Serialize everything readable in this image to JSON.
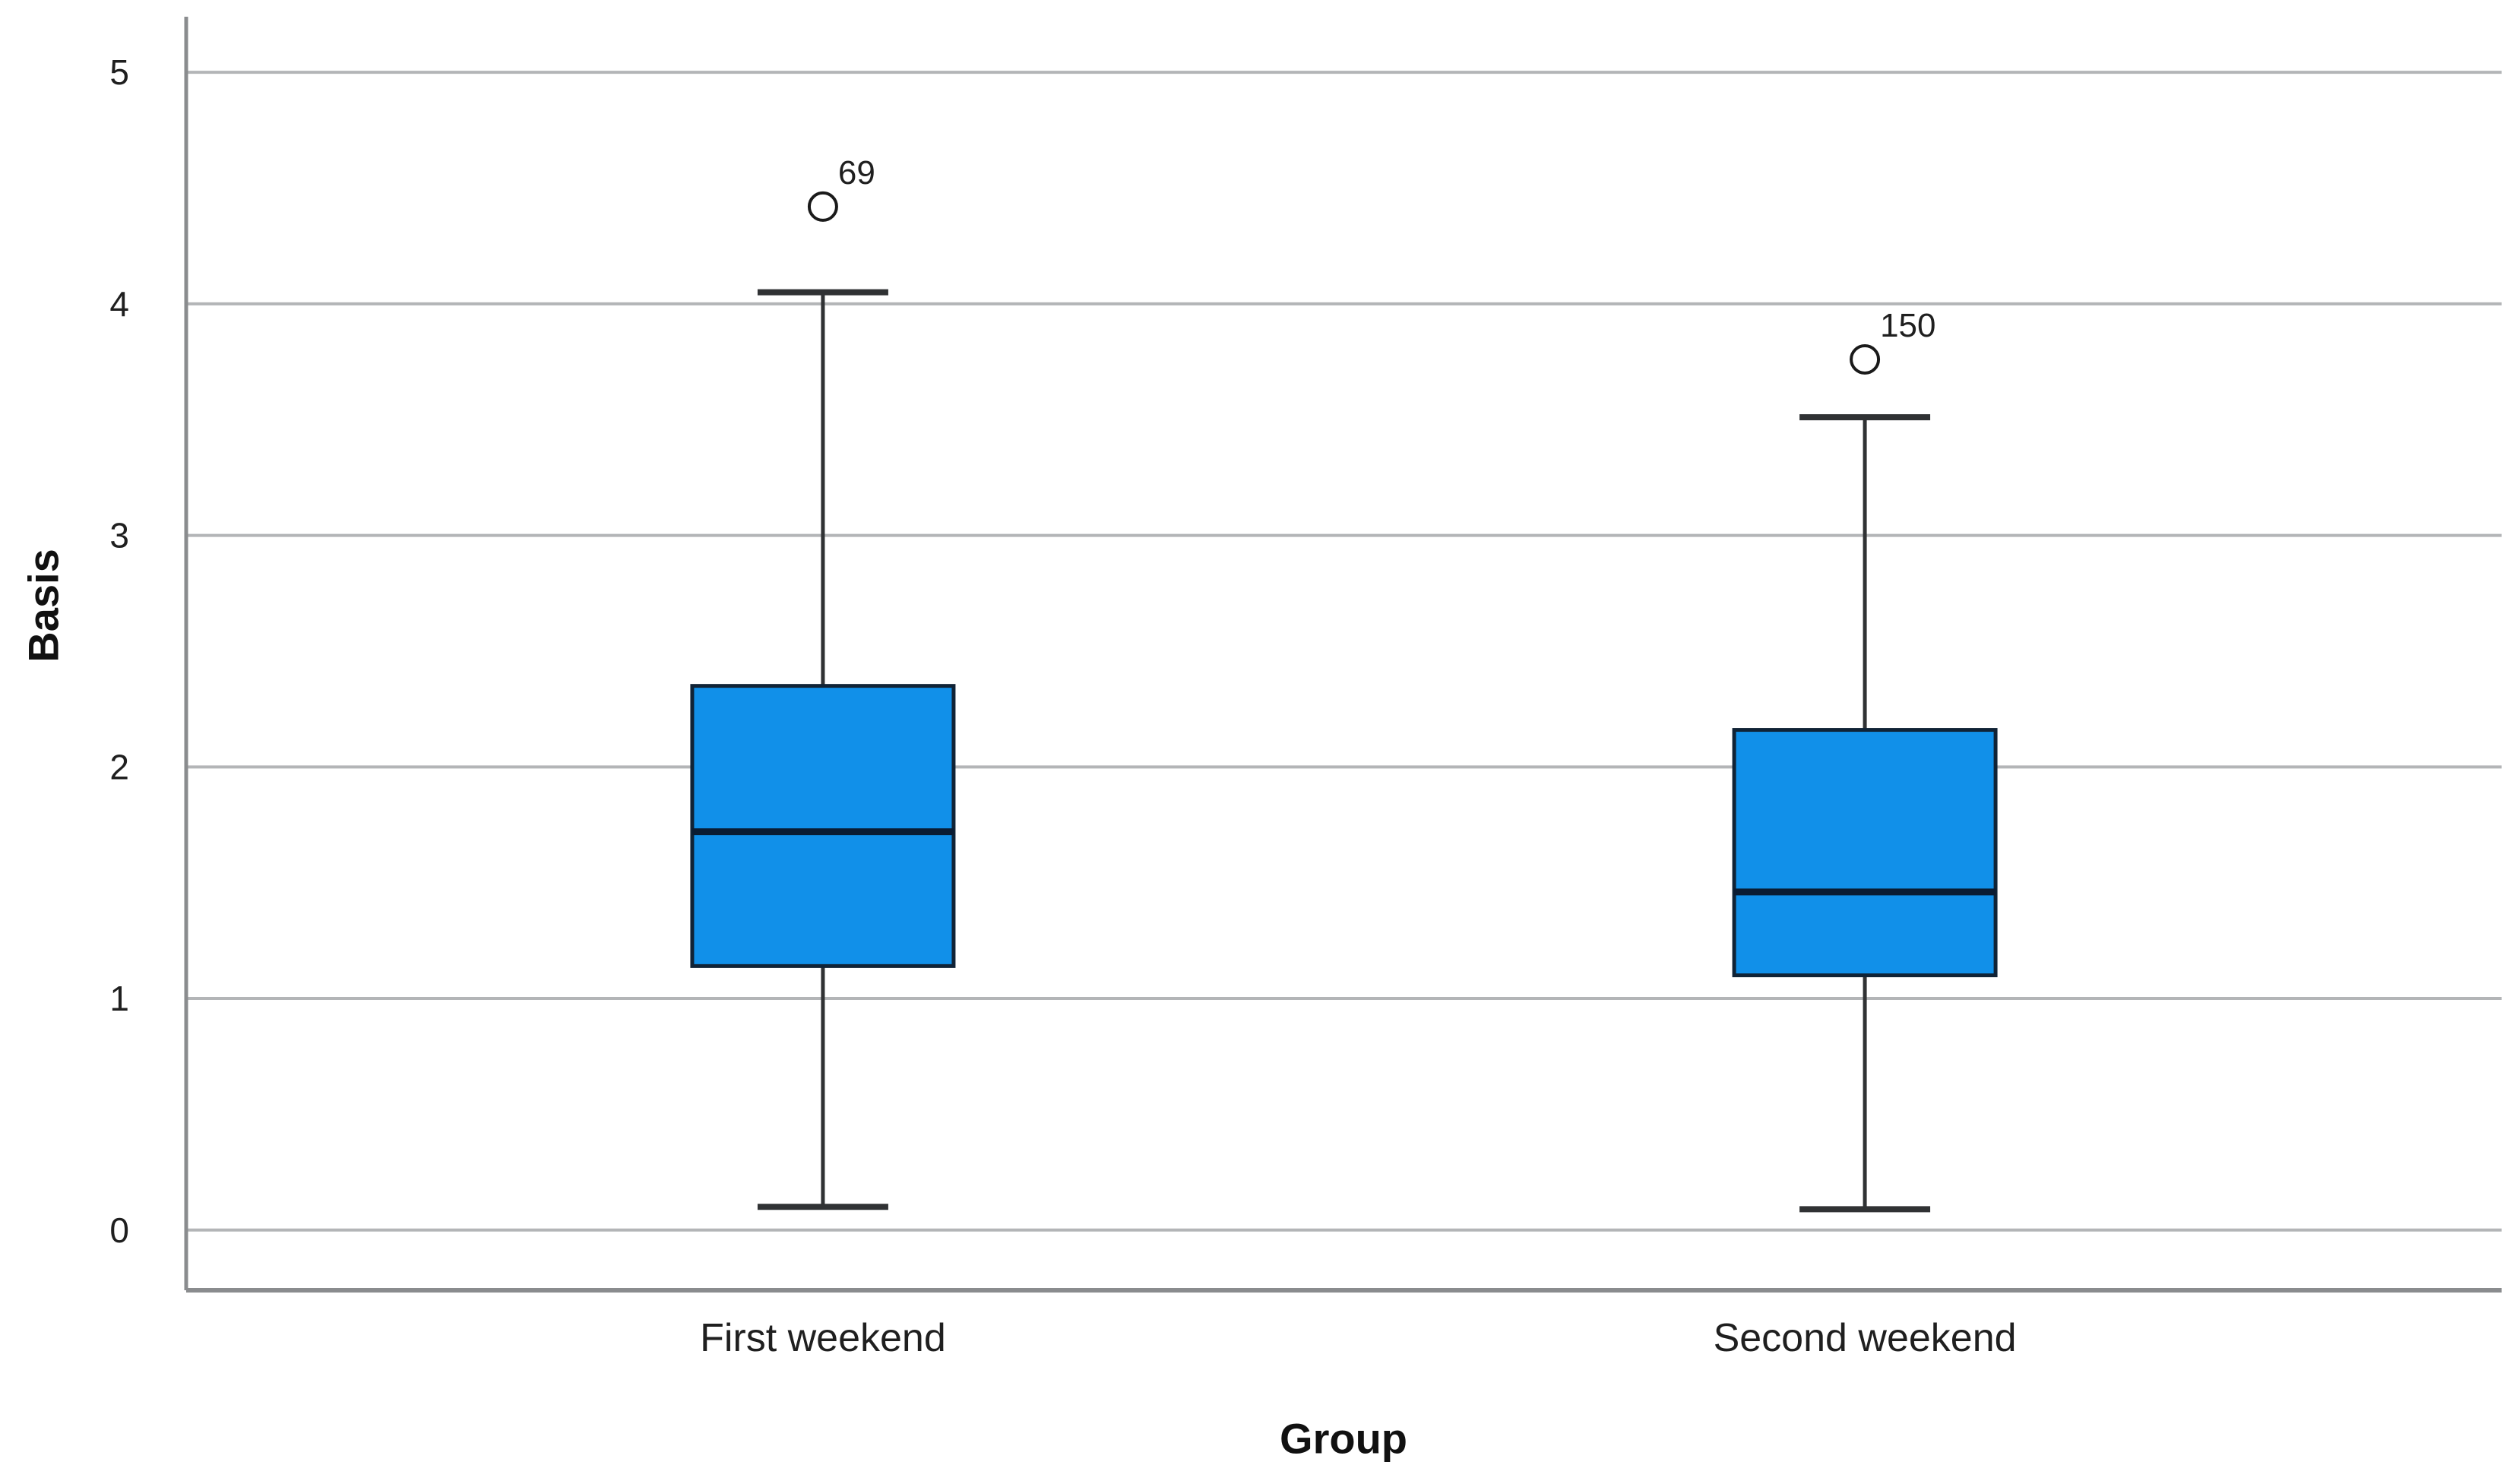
{
  "chart_data": {
    "type": "box",
    "title": "",
    "xlabel": "Group",
    "ylabel": "Basis",
    "categories": [
      "First weekend",
      "Second weekend"
    ],
    "yticks": [
      0,
      1,
      2,
      3,
      4,
      5
    ],
    "ylim": [
      -0.26,
      5.24
    ],
    "grid": true,
    "legend": "none",
    "boxes": [
      {
        "category": "First weekend",
        "whisker_low": 0.1,
        "q1": 1.14,
        "median": 1.72,
        "q3": 2.35,
        "whisker_high": 4.05,
        "outliers": [
          {
            "value": 4.42,
            "label": "69"
          }
        ]
      },
      {
        "category": "Second weekend",
        "whisker_low": 0.09,
        "q1": 1.1,
        "median": 1.46,
        "q3": 2.16,
        "whisker_high": 3.51,
        "outliers": [
          {
            "value": 3.76,
            "label": "150"
          }
        ]
      }
    ],
    "colors": {
      "box_fill": "#1190E9",
      "box_border": "#102336",
      "median": "#0A1C33",
      "whisker": "#303234",
      "outlier_stroke": "#1a1a1a",
      "gridline": "#b3b5b7",
      "axis": "#8a8c8e",
      "text": "#1f1f1f"
    }
  }
}
